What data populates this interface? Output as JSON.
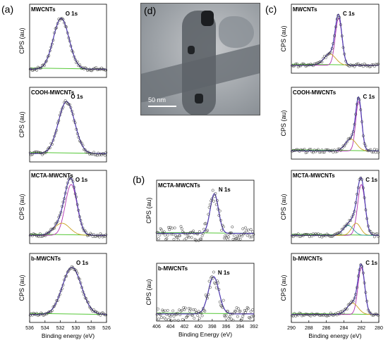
{
  "figure": {
    "panel_labels": {
      "a": "(a)",
      "b": "(b)",
      "c": "(c)",
      "d": "(d)"
    },
    "tem_scale_label": "50 nm",
    "colors": {
      "envelope": "#6a3fa0",
      "fit": "#1f3fd6",
      "baseline": "#55c837",
      "points": "#333333"
    }
  },
  "chart_data": [
    {
      "id": "a1",
      "type": "scatter",
      "panel": "(a)",
      "sample": "MWCNTs",
      "peak_label": "O 1s",
      "xlim": [
        536,
        526
      ],
      "ylabel": "CPS (au)",
      "xlabel": "",
      "x_ticks": [],
      "peaks": [
        {
          "center": 531.9,
          "fwhm": 2.4
        }
      ],
      "series": [
        {
          "x": [
            535.5,
            534,
            533,
            532.5,
            532,
            531.8,
            531.5,
            531,
            530,
            529,
            528,
            527,
            526.5
          ],
          "values": [
            0.06,
            0.14,
            0.48,
            0.82,
            1.0,
            0.98,
            0.9,
            0.66,
            0.22,
            0.06,
            0.04,
            0.02,
            0.02
          ]
        }
      ]
    },
    {
      "id": "a2",
      "type": "scatter",
      "panel": "(a)",
      "sample": "COOH-MWCNTs",
      "peak_label": "O 1s",
      "xlim": [
        536,
        526
      ],
      "ylabel": "CPS (au)",
      "xlabel": "",
      "x_ticks": [],
      "peaks": [
        {
          "center": 531.2,
          "fwhm": 2.5
        }
      ],
      "series": [
        {
          "x": [
            535.5,
            534,
            533,
            532,
            531.5,
            531.2,
            530.5,
            530,
            529,
            528,
            527,
            526.5
          ],
          "values": [
            0.02,
            0.06,
            0.24,
            0.7,
            0.95,
            1.0,
            0.82,
            0.6,
            0.18,
            0.06,
            0.03,
            0.02
          ]
        }
      ]
    },
    {
      "id": "a3",
      "type": "scatter",
      "panel": "(a)",
      "sample": "MCTA-MWCNTs",
      "peak_label": "O 1s",
      "xlim": [
        536,
        526
      ],
      "ylabel": "CPS (au)",
      "xlabel": "",
      "x_ticks": [],
      "peaks": [
        {
          "center": 530.6,
          "fwhm": 1.8
        },
        {
          "center": 531.8,
          "fwhm": 2.4
        }
      ],
      "series": [
        {
          "x": [
            535.5,
            534,
            533,
            532,
            531,
            530.6,
            530,
            529,
            528,
            527,
            526.5
          ],
          "values": [
            0.02,
            0.06,
            0.2,
            0.5,
            0.92,
            1.0,
            0.8,
            0.3,
            0.1,
            0.04,
            0.02
          ]
        }
      ]
    },
    {
      "id": "a4",
      "type": "scatter",
      "panel": "(a)",
      "sample": "b-MWCNTs",
      "peak_label": "O 1s",
      "xlim": [
        536,
        526
      ],
      "ylabel": "CPS (au)",
      "xlabel": "Binding energy (eV)",
      "x_ticks": [
        536,
        534,
        532,
        530,
        528,
        526
      ],
      "peaks": [
        {
          "center": 530.5,
          "fwhm": 2.9
        }
      ],
      "series": [
        {
          "x": [
            535.5,
            534,
            533,
            532,
            531,
            530.5,
            530,
            529,
            528,
            527,
            526.5
          ],
          "values": [
            0.04,
            0.08,
            0.3,
            0.62,
            0.94,
            1.0,
            0.9,
            0.52,
            0.2,
            0.06,
            0.04
          ]
        }
      ]
    },
    {
      "id": "b1",
      "type": "scatter",
      "panel": "(b)",
      "sample": "MCTA-MWCNTs",
      "peak_label": "N 1s",
      "xlim": [
        406,
        392
      ],
      "ylabel": "CPS (au)",
      "xlabel": "",
      "x_ticks": [],
      "peaks": [
        {
          "center": 397.7,
          "fwhm": 1.4
        }
      ],
      "series": [
        {
          "x": [
            405,
            403,
            401,
            399,
            398.3,
            397.7,
            397,
            395,
            393
          ],
          "values": [
            0.1,
            0.12,
            0.1,
            0.14,
            0.7,
            1.0,
            0.5,
            0.1,
            0.12
          ]
        }
      ]
    },
    {
      "id": "b2",
      "type": "scatter",
      "panel": "(b)",
      "sample": "b-MWCNTs",
      "peak_label": "N 1s",
      "xlim": [
        406,
        392
      ],
      "ylabel": "CPS (au)",
      "xlabel": "Binding Energy (eV)",
      "x_ticks": [
        406,
        404,
        402,
        400,
        398,
        396,
        394,
        392
      ],
      "peaks": [
        {
          "center": 397.8,
          "fwhm": 1.8
        }
      ],
      "series": [
        {
          "x": [
            405,
            403,
            401,
            399,
            398.3,
            397.8,
            397,
            395,
            393
          ],
          "values": [
            0.12,
            0.14,
            0.16,
            0.22,
            0.7,
            1.0,
            0.6,
            0.16,
            0.14
          ]
        }
      ]
    },
    {
      "id": "c1",
      "type": "scatter",
      "panel": "(c)",
      "sample": "MWCNTs",
      "peak_label": "C 1s",
      "xlim": [
        290,
        280
      ],
      "ylabel": "CPS (au)",
      "xlabel": "",
      "x_ticks": [],
      "peaks": [
        {
          "center": 284.6,
          "fwhm": 0.9
        },
        {
          "center": 285.6,
          "fwhm": 1.6
        }
      ],
      "series": [
        {
          "x": [
            289.5,
            288,
            287,
            286,
            285.3,
            284.9,
            284.6,
            284.3,
            284,
            283,
            282,
            281,
            280.5
          ],
          "values": [
            0.02,
            0.03,
            0.05,
            0.1,
            0.3,
            0.8,
            1.0,
            0.8,
            0.3,
            0.06,
            0.03,
            0.02,
            0.02
          ]
        }
      ]
    },
    {
      "id": "c2",
      "type": "scatter",
      "panel": "(c)",
      "sample": "COOH-MWCNTs",
      "peak_label": "C 1s",
      "xlim": [
        290,
        280
      ],
      "ylabel": "CPS (au)",
      "xlabel": "",
      "x_ticks": [],
      "peaks": [
        {
          "center": 282.3,
          "fwhm": 0.8
        },
        {
          "center": 283.2,
          "fwhm": 1.5
        }
      ],
      "series": [
        {
          "x": [
            289.5,
            288,
            287,
            286,
            285,
            284,
            283.2,
            282.6,
            282.3,
            282,
            281.5,
            281,
            280.5
          ],
          "values": [
            0.02,
            0.03,
            0.04,
            0.06,
            0.08,
            0.12,
            0.3,
            0.85,
            1.0,
            0.7,
            0.2,
            0.04,
            0.02
          ]
        }
      ]
    },
    {
      "id": "c3",
      "type": "scatter",
      "panel": "(c)",
      "sample": "MCTA-MWCNTs",
      "peak_label": "C 1s",
      "xlim": [
        290,
        280
      ],
      "ylabel": "CPS (au)",
      "xlabel": "",
      "x_ticks": [],
      "peaks": [
        {
          "center": 282.0,
          "fwhm": 1.0
        },
        {
          "center": 282.6,
          "fwhm": 1.2
        },
        {
          "center": 283.5,
          "fwhm": 1.4
        }
      ],
      "series": [
        {
          "x": [
            289.5,
            288,
            287,
            286,
            285,
            284,
            283.5,
            283,
            282.5,
            282,
            281.5,
            281,
            280.5
          ],
          "values": [
            0.02,
            0.03,
            0.04,
            0.06,
            0.1,
            0.18,
            0.3,
            0.56,
            0.92,
            1.0,
            0.5,
            0.1,
            0.03
          ]
        }
      ]
    },
    {
      "id": "c4",
      "type": "scatter",
      "panel": "(c)",
      "sample": "b-MWCNTs",
      "peak_label": "C 1s",
      "xlim": [
        290,
        280
      ],
      "ylabel": "CPS (au)",
      "xlabel": "Binding energy (eV)",
      "x_ticks": [
        290,
        288,
        286,
        284,
        282,
        280
      ],
      "peaks": [
        {
          "center": 282.0,
          "fwhm": 0.9
        },
        {
          "center": 283.0,
          "fwhm": 1.5
        }
      ],
      "series": [
        {
          "x": [
            289.5,
            288,
            287,
            286,
            285,
            284,
            283.5,
            283,
            282.5,
            282,
            281.5,
            281,
            280.5
          ],
          "values": [
            0.03,
            0.04,
            0.05,
            0.07,
            0.1,
            0.14,
            0.22,
            0.45,
            0.9,
            1.0,
            0.5,
            0.1,
            0.04
          ]
        }
      ]
    }
  ]
}
